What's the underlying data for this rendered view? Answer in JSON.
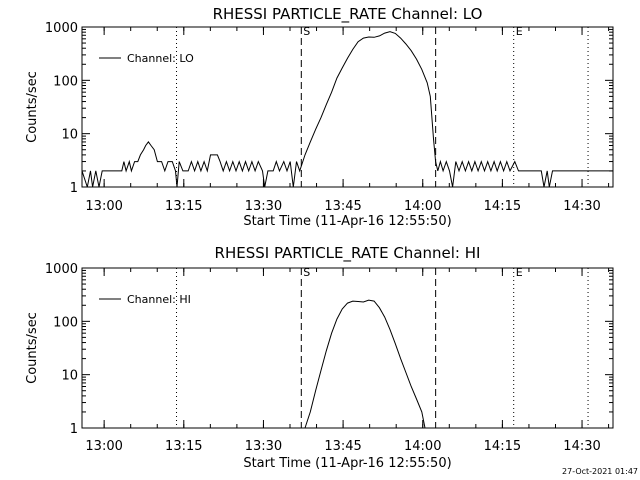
{
  "chart_data": [
    {
      "type": "line",
      "title": "RHESSI PARTICLE_RATE Channel: LO",
      "xlabel": "Start Time (11-Apr-16 12:55:50)",
      "ylabel": "Counts/sec",
      "yscale": "log",
      "ylim": [
        1,
        1000
      ],
      "xlim_min_since_start": [
        0,
        100
      ],
      "x_ticks": [
        {
          "min": 4.17,
          "label": "13:00"
        },
        {
          "min": 19.17,
          "label": "13:15"
        },
        {
          "min": 34.17,
          "label": "13:30"
        },
        {
          "min": 49.17,
          "label": "13:45"
        },
        {
          "min": 64.17,
          "label": "14:00"
        },
        {
          "min": 79.17,
          "label": "14:15"
        },
        {
          "min": 94.17,
          "label": "14:30"
        }
      ],
      "y_ticks": [
        {
          "v": 1,
          "label": "1"
        },
        {
          "v": 10,
          "label": "10"
        },
        {
          "v": 100,
          "label": "100"
        },
        {
          "v": 1000,
          "label": "1000"
        }
      ],
      "legend": {
        "label": "Channel: LO",
        "position": "top-left"
      },
      "vlines_dotted_min": [
        17.8,
        81.3,
        95.3
      ],
      "vlines_dashed_min": [
        41.3,
        66.6
      ],
      "markers": [
        {
          "label": "S",
          "min": 41.3
        },
        {
          "label": "E",
          "min": 81.3
        }
      ],
      "series": [
        {
          "points": [
            [
              0,
              2
            ],
            [
              1,
              1
            ],
            [
              1.6,
              2
            ],
            [
              2,
              1
            ],
            [
              2.6,
              2
            ],
            [
              3.2,
              1
            ],
            [
              3.8,
              2
            ],
            [
              4.5,
              2
            ],
            [
              6,
              2
            ],
            [
              7.5,
              2
            ],
            [
              7.9,
              3
            ],
            [
              8.3,
              2
            ],
            [
              8.9,
              3
            ],
            [
              9.3,
              2
            ],
            [
              9.9,
              3
            ],
            [
              10.5,
              3
            ],
            [
              11,
              4
            ],
            [
              11.6,
              5
            ],
            [
              12,
              6
            ],
            [
              12.5,
              7
            ],
            [
              13,
              6
            ],
            [
              13.6,
              5
            ],
            [
              14.2,
              3
            ],
            [
              15,
              3
            ],
            [
              15.6,
              2
            ],
            [
              16.2,
              3
            ],
            [
              17,
              3
            ],
            [
              17.6,
              2
            ],
            [
              17.9,
              1
            ],
            [
              18.3,
              3
            ],
            [
              19,
              2
            ],
            [
              20,
              2
            ],
            [
              20.6,
              3
            ],
            [
              21.2,
              2
            ],
            [
              21.8,
              3
            ],
            [
              22.4,
              2
            ],
            [
              23,
              3
            ],
            [
              23.6,
              2
            ],
            [
              24.2,
              4
            ],
            [
              25.5,
              4
            ],
            [
              26,
              3
            ],
            [
              26.6,
              2
            ],
            [
              27.2,
              3
            ],
            [
              27.8,
              2
            ],
            [
              28.4,
              3
            ],
            [
              29,
              2
            ],
            [
              29.6,
              3
            ],
            [
              30.2,
              2
            ],
            [
              30.8,
              3
            ],
            [
              31.4,
              2
            ],
            [
              32,
              3
            ],
            [
              32.6,
              2
            ],
            [
              33.2,
              3
            ],
            [
              34,
              2
            ],
            [
              34.4,
              1
            ],
            [
              35,
              2
            ],
            [
              36,
              2
            ],
            [
              36.6,
              3
            ],
            [
              37.2,
              2
            ],
            [
              38,
              3
            ],
            [
              38.6,
              2
            ],
            [
              39.2,
              3
            ],
            [
              39.8,
              1
            ],
            [
              40.4,
              3
            ],
            [
              41,
              2
            ],
            [
              42,
              4
            ],
            [
              43,
              7
            ],
            [
              44,
              12
            ],
            [
              45,
              20
            ],
            [
              46,
              35
            ],
            [
              47,
              60
            ],
            [
              48,
              110
            ],
            [
              49,
              170
            ],
            [
              50,
              260
            ],
            [
              51,
              380
            ],
            [
              52,
              530
            ],
            [
              53,
              620
            ],
            [
              54,
              650
            ],
            [
              55,
              640
            ],
            [
              56,
              680
            ],
            [
              57,
              770
            ],
            [
              58,
              820
            ],
            [
              59,
              760
            ],
            [
              60,
              620
            ],
            [
              61,
              480
            ],
            [
              62,
              360
            ],
            [
              63,
              250
            ],
            [
              64,
              160
            ],
            [
              65,
              90
            ],
            [
              65.6,
              50
            ],
            [
              66.2,
              8
            ],
            [
              66.6,
              3
            ],
            [
              67,
              2
            ],
            [
              67.5,
              3
            ],
            [
              68,
              2
            ],
            [
              68.6,
              3
            ],
            [
              69.2,
              2
            ],
            [
              69.8,
              1
            ],
            [
              70.4,
              3
            ],
            [
              71,
              2
            ],
            [
              71.6,
              3
            ],
            [
              72.2,
              2
            ],
            [
              72.8,
              3
            ],
            [
              73.4,
              2
            ],
            [
              74,
              3
            ],
            [
              74.6,
              2
            ],
            [
              75.2,
              3
            ],
            [
              75.8,
              2
            ],
            [
              76.4,
              3
            ],
            [
              77,
              2
            ],
            [
              77.6,
              3
            ],
            [
              78.2,
              2
            ],
            [
              78.8,
              3
            ],
            [
              79.4,
              2
            ],
            [
              80,
              3
            ],
            [
              80.6,
              2
            ],
            [
              81.5,
              3
            ],
            [
              82.2,
              2
            ],
            [
              83,
              2
            ],
            [
              84,
              2
            ],
            [
              85,
              2
            ],
            [
              86.5,
              2
            ],
            [
              87,
              1
            ],
            [
              87.6,
              2
            ],
            [
              88,
              1
            ],
            [
              88.6,
              2
            ],
            [
              90,
              2
            ],
            [
              100,
              2
            ]
          ]
        }
      ]
    },
    {
      "type": "line",
      "title": "RHESSI PARTICLE_RATE Channel: HI",
      "xlabel": "Start Time (11-Apr-16 12:55:50)",
      "ylabel": "Counts/sec",
      "yscale": "log",
      "ylim": [
        1,
        1000
      ],
      "xlim_min_since_start": [
        0,
        100
      ],
      "x_ticks": [
        {
          "min": 4.17,
          "label": "13:00"
        },
        {
          "min": 19.17,
          "label": "13:15"
        },
        {
          "min": 34.17,
          "label": "13:30"
        },
        {
          "min": 49.17,
          "label": "13:45"
        },
        {
          "min": 64.17,
          "label": "14:00"
        },
        {
          "min": 79.17,
          "label": "14:15"
        },
        {
          "min": 94.17,
          "label": "14:30"
        }
      ],
      "y_ticks": [
        {
          "v": 1,
          "label": "1"
        },
        {
          "v": 10,
          "label": "10"
        },
        {
          "v": 100,
          "label": "100"
        },
        {
          "v": 1000,
          "label": "1000"
        }
      ],
      "legend": {
        "label": "Channel: HI",
        "position": "top-left"
      },
      "vlines_dotted_min": [
        17.8,
        81.3,
        95.3
      ],
      "vlines_dashed_min": [
        41.3,
        66.6
      ],
      "markers": [
        {
          "label": "S",
          "min": 41.3
        },
        {
          "label": "E",
          "min": 81.3
        }
      ],
      "series": [
        {
          "points": [
            [
              42,
              1
            ],
            [
              43,
              2
            ],
            [
              44,
              5
            ],
            [
              45,
              12
            ],
            [
              46,
              28
            ],
            [
              47,
              60
            ],
            [
              48,
              110
            ],
            [
              49,
              170
            ],
            [
              50,
              220
            ],
            [
              51,
              240
            ],
            [
              52,
              235
            ],
            [
              53,
              230
            ],
            [
              54,
              250
            ],
            [
              55,
              240
            ],
            [
              56,
              180
            ],
            [
              57,
              120
            ],
            [
              58,
              70
            ],
            [
              59,
              38
            ],
            [
              60,
              20
            ],
            [
              61,
              11
            ],
            [
              62,
              6
            ],
            [
              63,
              3.5
            ],
            [
              64,
              2
            ],
            [
              64.6,
              1
            ]
          ]
        }
      ]
    }
  ],
  "footer": {
    "timestamp": "27-Oct-2021 01:47"
  }
}
